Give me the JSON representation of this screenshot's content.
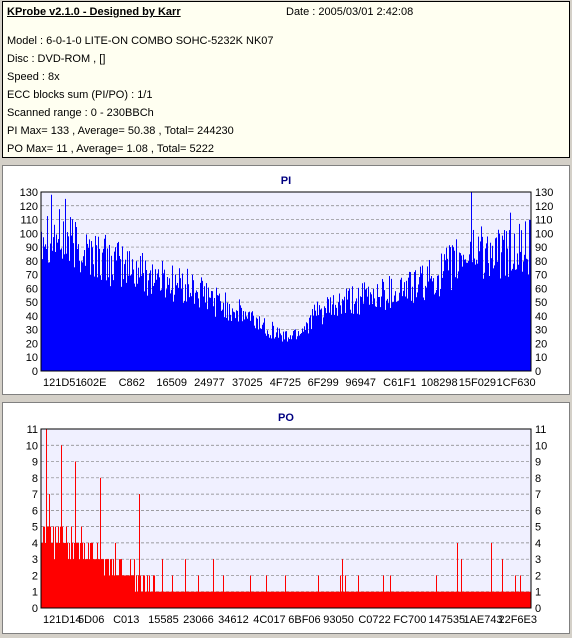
{
  "header": {
    "app_title": "KProbe v2.1.0 - Designed by Karr",
    "date": "Date : 2005/03/01 2:42:08",
    "model": "Model : 6-0-1-0 LITE-ON COMBO SOHC-5232K NK07",
    "disc": "Disc : DVD-ROM ,  []",
    "speed": "Speed : 8x",
    "ecc": "ECC blocks sum (PI/PO) : 1/1",
    "scanned_range": "Scanned range : 0 - 230BBCh",
    "pi_stats": "PI Max= 133 , Average= 50.38 , Total= 244230",
    "po_stats": "PO Max= 11 , Average= 1.08 , Total= 5222"
  },
  "colors": {
    "pi_bar": "#0000ff",
    "po_bar": "#ff0000",
    "plot_bg": "#f0f0ff",
    "title": "#000080"
  },
  "chart_data": [
    {
      "type": "bar",
      "title": "PI",
      "xlabel": "",
      "ylabel": "",
      "ylim": [
        0,
        130
      ],
      "yticks": [
        0,
        10,
        20,
        30,
        40,
        50,
        60,
        70,
        80,
        90,
        100,
        110,
        120,
        130
      ],
      "x_tick_labels": [
        "121D51",
        "602E",
        "C862",
        "16509",
        "24977",
        "37025",
        "4F725",
        "6F299",
        "96947",
        "C61F1",
        "108298",
        "15F029",
        "1CF630"
      ],
      "grid": true,
      "envelope_x": [
        0,
        0.03,
        0.08,
        0.15,
        0.22,
        0.3,
        0.38,
        0.45,
        0.5,
        0.53,
        0.56,
        0.62,
        0.7,
        0.78,
        0.83,
        0.88,
        0.93,
        1.0
      ],
      "envelope_y": [
        108,
        100,
        92,
        80,
        72,
        62,
        48,
        35,
        25,
        30,
        42,
        50,
        58,
        65,
        75,
        90,
        86,
        92
      ],
      "spikes": [
        [
          0.02,
          128
        ],
        [
          0.05,
          125
        ],
        [
          0.88,
          133
        ],
        [
          0.9,
          105
        ],
        [
          0.96,
          115
        ]
      ]
    },
    {
      "type": "bar",
      "title": "PO",
      "xlabel": "",
      "ylabel": "",
      "ylim": [
        0,
        11
      ],
      "yticks": [
        0,
        1,
        2,
        3,
        4,
        5,
        6,
        7,
        8,
        9,
        10,
        11
      ],
      "x_tick_labels": [
        "121D14",
        "5D06",
        "C013",
        "15585",
        "23066",
        "34612",
        "4C017",
        "6BF06",
        "93050",
        "C0722",
        "FC700",
        "147535",
        "1AE743",
        "22F6E3"
      ],
      "grid": true,
      "envelope_x": [
        0,
        0.05,
        0.1,
        0.15,
        0.2,
        0.25,
        0.4,
        0.6,
        0.8,
        1.0
      ],
      "envelope_y": [
        5,
        4,
        3.5,
        2.5,
        1.5,
        1.2,
        1.0,
        1.0,
        1.0,
        1.2
      ],
      "spikes": [
        [
          0.01,
          11
        ],
        [
          0.04,
          10
        ],
        [
          0.07,
          9
        ],
        [
          0.12,
          8
        ],
        [
          0.2,
          7
        ],
        [
          0.85,
          4
        ],
        [
          0.92,
          4
        ]
      ]
    }
  ]
}
